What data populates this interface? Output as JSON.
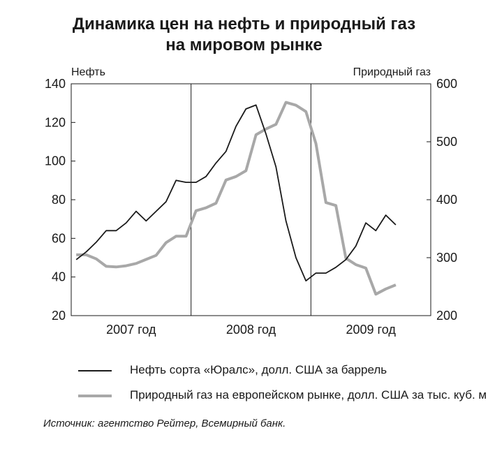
{
  "title_line1": "Динамика цен на нефть и природный газ",
  "title_line2": "на мировом рынке",
  "source": "Источник: агентство Рейтер, Всемирный банк.",
  "colors": {
    "oil": "#1a1a1a",
    "gas": "#a8a8a8",
    "axis": "#1a1a1a"
  },
  "chart_data": {
    "type": "line",
    "left_axis": {
      "label": "Нефть",
      "range": [
        20,
        140
      ],
      "ticks": [
        20,
        40,
        60,
        80,
        100,
        120,
        140
      ]
    },
    "right_axis": {
      "label": "Природный газ",
      "range": [
        200,
        600
      ],
      "ticks": [
        200,
        300,
        400,
        500,
        600
      ]
    },
    "x_axis": {
      "categories": [
        "2007 год",
        "2008 год",
        "2009 год"
      ],
      "months_per_year": 12,
      "total_months": 36
    },
    "series": [
      {
        "name": "Нефть сорта «Юралс», долл. США за баррель",
        "axis": "left",
        "values": [
          49,
          53,
          58,
          64,
          64,
          68,
          74,
          69,
          74,
          79,
          90,
          89,
          89,
          92,
          99,
          105,
          118,
          127,
          129,
          114,
          97,
          69,
          50,
          38,
          42,
          42,
          45,
          49,
          56,
          68,
          64,
          72,
          67
        ]
      },
      {
        "name": "Природный газ на европейском рынке, долл. США за тыс. куб. м",
        "axis": "right",
        "values": [
          305,
          305,
          298,
          285,
          284,
          286,
          290,
          297,
          304,
          326,
          337,
          337,
          381,
          386,
          394,
          434,
          440,
          450,
          512,
          522,
          530,
          568,
          563,
          552,
          497,
          395,
          390,
          299,
          288,
          282,
          237,
          246,
          253
        ]
      }
    ],
    "legend": [
      "Нефть сорта «Юралс», долл. США за баррель",
      "Природный газ на европейском рынке, долл. США за тыс. куб. м"
    ],
    "grid": false
  }
}
